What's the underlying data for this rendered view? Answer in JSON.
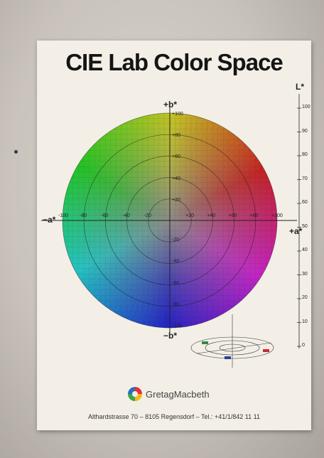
{
  "poster": {
    "title": "CIE Lab Color Space",
    "axis_labels": {
      "b_plus": "+b*",
      "b_minus": "−b*",
      "a_plus": "+a*",
      "a_minus": "−a*",
      "l_axis": "L*"
    },
    "ticks_b_up": [
      "+100",
      "+80",
      "+60",
      "+40",
      "+20"
    ],
    "ticks_b_down": [
      "-20",
      "-40",
      "-60",
      "-80",
      "-100"
    ],
    "ticks_a_left": [
      "-100",
      "-80",
      "-60",
      "-40",
      "-20"
    ],
    "ticks_a_right": [
      "+20",
      "+40",
      "+60",
      "+80",
      "+100"
    ],
    "l_ticks": [
      "100",
      "90",
      "80",
      "70",
      "60",
      "50",
      "40",
      "30",
      "20",
      "10",
      "0"
    ],
    "brand": "GretagMacbeth",
    "address": "Althardstrasse 70 – 8105 Regensdorf – Tel.: +41/1/842 11 11"
  }
}
